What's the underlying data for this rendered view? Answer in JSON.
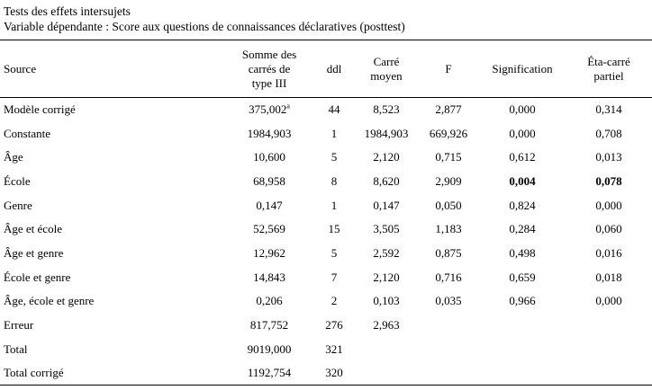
{
  "caption": {
    "line1": "Tests des effets intersujets",
    "line2": "Variable dépendante : Score aux questions de connaissances déclaratives (posttest)"
  },
  "headers": {
    "source": "Source",
    "ss_line1": "Somme des",
    "ss_line2": "carrés de",
    "ss_line3": "type III",
    "ddl": "ddl",
    "ms_line1": "Carré",
    "ms_line2": "moyen",
    "f": "F",
    "sig": "Signification",
    "eta_line1": "Éta-carré",
    "eta_line2": "partiel"
  },
  "rows": [
    {
      "source": "Modèle corrigé",
      "ss": "375,002",
      "ss_sup": "a",
      "ddl": "44",
      "ms": "8,523",
      "f": "2,877",
      "sig": "0,000",
      "eta": "0,314"
    },
    {
      "source": "Constante",
      "ss": "1984,903",
      "ss_sup": "",
      "ddl": "1",
      "ms": "1984,903",
      "f": "669,926",
      "sig": "0,000",
      "eta": "0,708"
    },
    {
      "source": "Âge",
      "ss": "10,600",
      "ss_sup": "",
      "ddl": "5",
      "ms": "2,120",
      "f": "0,715",
      "sig": "0,612",
      "eta": "0,013"
    },
    {
      "source": "École",
      "ss": "68,958",
      "ss_sup": "",
      "ddl": "8",
      "ms": "8,620",
      "f": "2,909",
      "sig": "0,004",
      "eta": "0,078"
    },
    {
      "source": "Genre",
      "ss": "0,147",
      "ss_sup": "",
      "ddl": "1",
      "ms": "0,147",
      "f": "0,050",
      "sig": "0,824",
      "eta": "0,000"
    },
    {
      "source": "Âge et école",
      "ss": "52,569",
      "ss_sup": "",
      "ddl": "15",
      "ms": "3,505",
      "f": "1,183",
      "sig": "0,284",
      "eta": "0,060"
    },
    {
      "source": "Âge et genre",
      "ss": "12,962",
      "ss_sup": "",
      "ddl": "5",
      "ms": "2,592",
      "f": "0,875",
      "sig": "0,498",
      "eta": "0,016"
    },
    {
      "source": "École et genre",
      "ss": "14,843",
      "ss_sup": "",
      "ddl": "7",
      "ms": "2,120",
      "f": "0,716",
      "sig": "0,659",
      "eta": "0,018"
    },
    {
      "source": "Âge, école et genre",
      "ss": "0,206",
      "ss_sup": "",
      "ddl": "2",
      "ms": "0,103",
      "f": "0,035",
      "sig": "0,966",
      "eta": "0,000"
    },
    {
      "source": "Erreur",
      "ss": "817,752",
      "ss_sup": "",
      "ddl": "276",
      "ms": "2,963",
      "f": "",
      "sig": "",
      "eta": ""
    },
    {
      "source": "Total",
      "ss": "9019,000",
      "ss_sup": "",
      "ddl": "321",
      "ms": "",
      "f": "",
      "sig": "",
      "eta": ""
    },
    {
      "source": "Total corrigé",
      "ss": "1192,754",
      "ss_sup": "",
      "ddl": "320",
      "ms": "",
      "f": "",
      "sig": "",
      "eta": ""
    }
  ]
}
